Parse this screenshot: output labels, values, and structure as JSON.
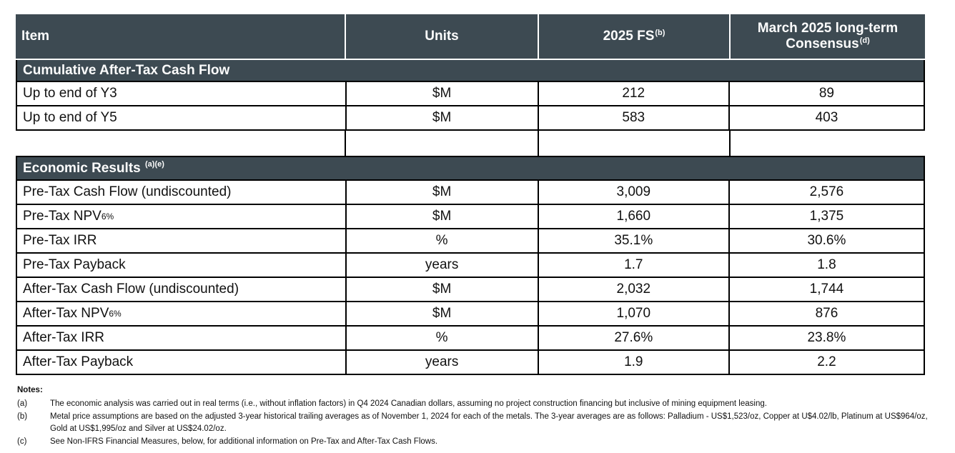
{
  "colors": {
    "header_bg": "#3d4a52",
    "header_text": "#ffffff",
    "border": "#000000"
  },
  "table": {
    "header": {
      "item": "Item",
      "units": "Units",
      "fs_label": "2025 FS",
      "fs_sup": "(b)",
      "consensus_label": "March 2025 long-term Consensus",
      "consensus_sup": "(d)"
    },
    "section1": {
      "title": "Cumulative After-Tax Cash Flow",
      "sup": ""
    },
    "section2": {
      "title": "Economic Results",
      "sup": "(a)(e)"
    },
    "rows": [
      {
        "label": "Up to end of Y3",
        "sub": "",
        "units": "$M",
        "fs": "212",
        "consensus": "89"
      },
      {
        "label": "Up to end of Y5",
        "sub": "",
        "units": "$M",
        "fs": "583",
        "consensus": "403"
      },
      {
        "label": "Pre-Tax Cash Flow (undiscounted)",
        "sub": "",
        "units": "$M",
        "fs": "3,009",
        "consensus": "2,576"
      },
      {
        "label": "Pre-Tax NPV",
        "sub": "6%",
        "units": "$M",
        "fs": "1,660",
        "consensus": "1,375"
      },
      {
        "label": "Pre-Tax IRR",
        "sub": "",
        "units": "%",
        "fs": "35.1%",
        "consensus": "30.6%"
      },
      {
        "label": "Pre-Tax Payback",
        "sub": "",
        "units": "years",
        "fs": "1.7",
        "consensus": "1.8"
      },
      {
        "label": "After-Tax Cash Flow (undiscounted)",
        "sub": "",
        "units": "$M",
        "fs": "2,032",
        "consensus": "1,744"
      },
      {
        "label": "After-Tax NPV",
        "sub": "6%",
        "units": "$M",
        "fs": "1,070",
        "consensus": "876"
      },
      {
        "label": "After-Tax IRR",
        "sub": "",
        "units": "%",
        "fs": "27.6%",
        "consensus": "23.8%"
      },
      {
        "label": "After-Tax Payback",
        "sub": "",
        "units": "years",
        "fs": "1.9",
        "consensus": "2.2"
      }
    ]
  },
  "notes": {
    "title": "Notes:",
    "items": [
      {
        "label": "(a)",
        "text": "The economic analysis was carried out in real terms (i.e., without inflation factors) in Q4 2024 Canadian dollars, assuming no project construction financing but inclusive of mining equipment leasing."
      },
      {
        "label": "(b)",
        "text": "Metal price assumptions are based on the adjusted 3-year historical trailing averages as of November 1, 2024 for each of the metals. The 3-year averages are as follows: Palladium - US$1,523/oz, Copper at U$4.02/lb, Platinum at US$964/oz, Gold at US$1,995/oz and Silver at US$24.02/oz."
      },
      {
        "label": "(c)",
        "text": "See Non-IFRS Financial Measures, below, for additional information on Pre-Tax and After-Tax Cash Flows."
      }
    ]
  }
}
